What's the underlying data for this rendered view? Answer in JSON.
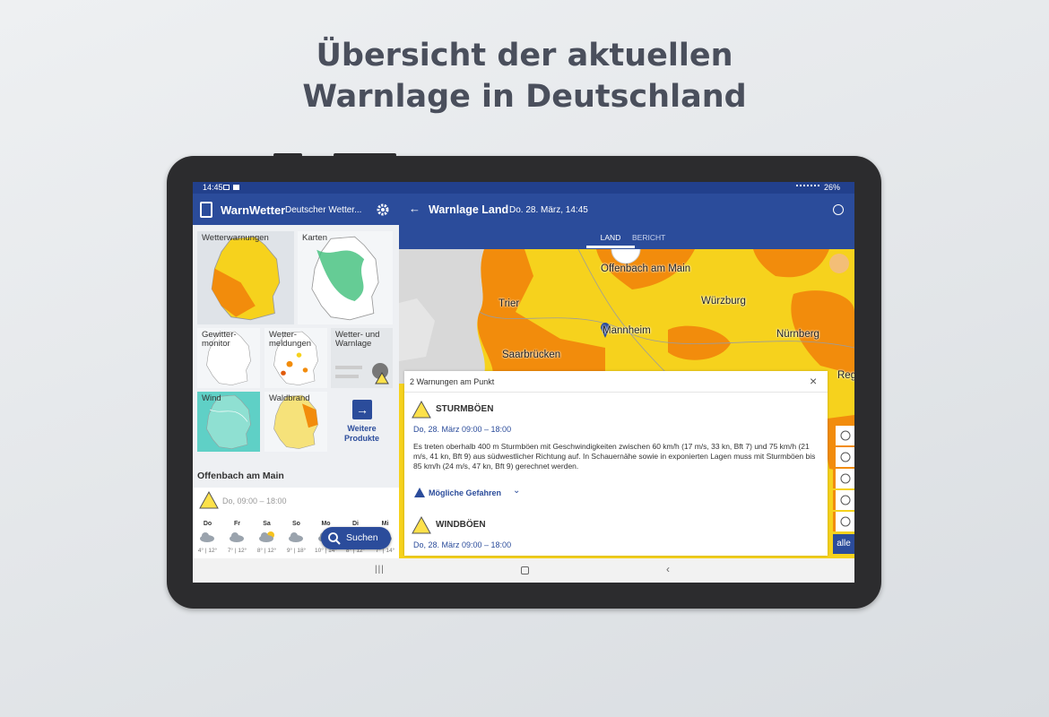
{
  "headline": [
    "Übersicht der aktuellen",
    "Warnlage in Deutschland"
  ],
  "status_bar": {
    "time": "14:45",
    "battery": "26%"
  },
  "sidebar": {
    "app_name": "WarnWetter",
    "app_subtitle": "Deutscher Wetter...",
    "tiles": [
      "Wetterwarnungen",
      "Karten",
      "Gewitter-\nmonitor",
      "Wetter-\nmeldungen",
      "Wetter- und\nWarnlage",
      "Wind",
      "Waldbrand"
    ],
    "more_products": "Weitere\nProdukte",
    "location": "Offenbach am Main",
    "warning_time": "Do, 09:00 – 18:00",
    "forecast": [
      {
        "day": "Do",
        "temp": "4° | 12°"
      },
      {
        "day": "Fr",
        "temp": "7° | 12°"
      },
      {
        "day": "Sa",
        "temp": "8° | 12°"
      },
      {
        "day": "So",
        "temp": "9° | 18°"
      },
      {
        "day": "Mo",
        "temp": "10° | 14°"
      },
      {
        "day": "Di",
        "temp": "8° | 12°"
      },
      {
        "day": "Mi",
        "temp": "7° | 14°"
      }
    ],
    "search_button": "Suchen"
  },
  "main": {
    "title": "Warnlage Land",
    "datetime": "Do. 28. März, 14:45",
    "tabs": [
      "LAND",
      "BERICHT"
    ],
    "map_labels": [
      "Offenbach am Main",
      "Würzburg",
      "Trier",
      "Mannheim",
      "Nürnberg",
      "Saarbrücken",
      "Reg"
    ],
    "warning_panel": {
      "heading": "2 Warnungen am Punkt",
      "warnings": [
        {
          "name": "STURMBÖEN",
          "time": "Do, 28. März 09:00 – 18:00",
          "description": "Es treten oberhalb 400 m Sturmböen mit Geschwindigkeiten zwischen 60 km/h (17 m/s, 33 kn, Bft 7) und 75 km/h (21 m/s, 41 kn, Bft 9) aus südwestlicher Richtung auf. In Schauernähe sowie in exponierten Lagen muss mit Sturmböen bis 85 km/h (24 m/s, 47 kn, Bft 9) gerechnet werden.",
          "more": "Mögliche Gefahren"
        },
        {
          "name": "WINDBÖEN",
          "time": "Do, 28. März 09:00 – 18:00"
        }
      ]
    },
    "filter_button": "alle"
  }
}
